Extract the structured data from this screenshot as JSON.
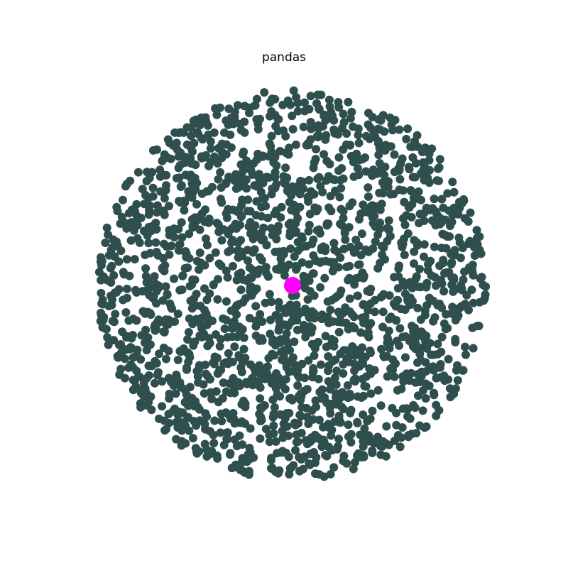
{
  "chart_data": {
    "type": "scatter",
    "title": "pandas",
    "xlabel": "",
    "ylabel": "",
    "axes_visible": false,
    "grid": false,
    "legend": "none",
    "xlim": [
      -1.05,
      1.05
    ],
    "ylim": [
      -1.05,
      1.05
    ],
    "series": [
      {
        "role": "neighbors",
        "color": "#2f4f4f",
        "distribution": "disk",
        "count": 2000,
        "radius": 1.0
      },
      {
        "role": "center",
        "color": "#ff00ff",
        "points": [
          {
            "x": 0,
            "y": 0
          }
        ]
      }
    ]
  }
}
